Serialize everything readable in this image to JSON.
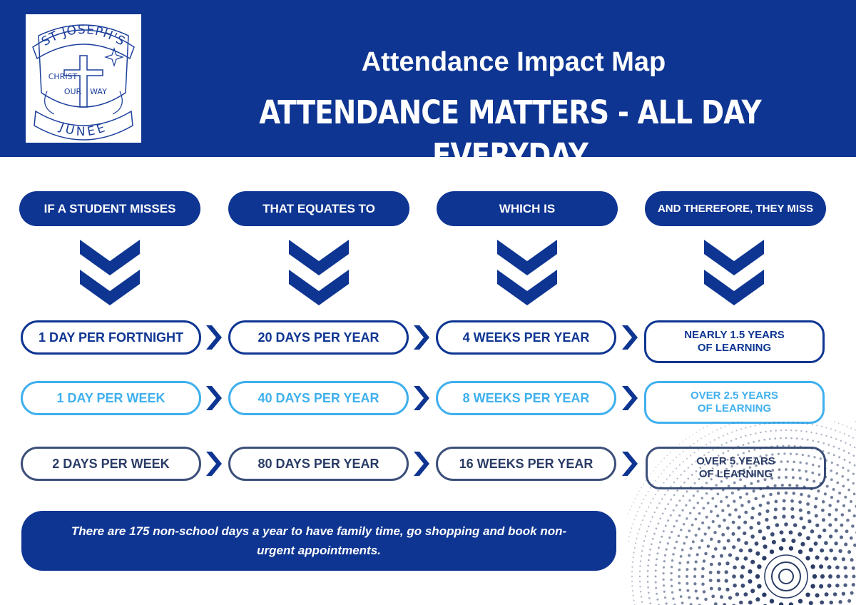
{
  "header": {
    "title": "Attendance Impact Map",
    "subtitle": "ATTENDANCE MATTERS - ALL DAY EVERYDAY"
  },
  "logo": {
    "top_text": "ST JOSEPH'S",
    "word1": "CHRIST",
    "word2": "OUR",
    "word3": "WAY",
    "bottom_text": "JUNEE"
  },
  "columns": [
    "IF A STUDENT MISSES",
    "THAT EQUATES TO",
    "WHICH IS",
    "AND THEREFORE, THEY MISS"
  ],
  "rows": [
    {
      "style": "dark",
      "misses": "1 DAY PER FORTNIGHT",
      "equates": "20 DAYS PER YEAR",
      "which_is": "4 WEEKS PER YEAR",
      "miss_line1": "NEARLY 1.5 YEARS",
      "miss_line2": "OF LEARNING"
    },
    {
      "style": "light",
      "misses": "1 DAY PER WEEK",
      "equates": "40 DAYS PER YEAR",
      "which_is": "8 WEEKS PER YEAR",
      "miss_line1": "OVER 2.5 YEARS",
      "miss_line2": "OF LEARNING"
    },
    {
      "style": "slate",
      "misses": "2 DAYS PER WEEK",
      "equates": "80 DAYS PER YEAR",
      "which_is": "16 WEEKS PER YEAR",
      "miss_line1": "OVER 5 YEARS",
      "miss_line2": "OF LEARNING"
    }
  ],
  "footer": {
    "note": "There are 175 non-school days a year to have family time, go shopping and book non-urgent appointments."
  },
  "colors": {
    "navy": "#0e3592",
    "light_blue": "#3fb0ee",
    "slate": "#3c4f7a"
  },
  "icons": {
    "chevron": "double-chevron-down-icon",
    "arrow": "chevron-right-icon",
    "decoration": "halftone-ripple"
  }
}
